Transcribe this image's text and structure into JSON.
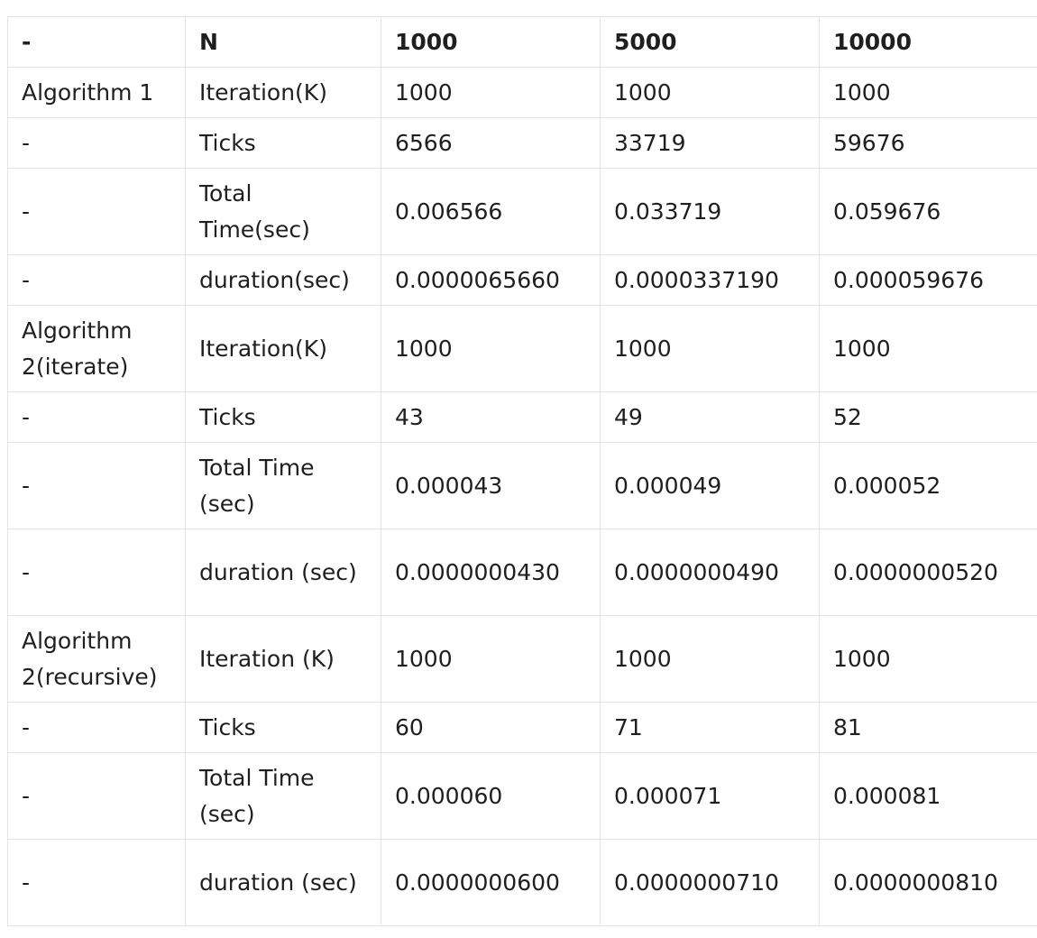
{
  "table": {
    "headers": [
      "-",
      "N",
      "1000",
      "5000",
      "10000"
    ],
    "rows": [
      [
        "Algorithm 1",
        "Iteration(K)",
        "1000",
        "1000",
        "1000"
      ],
      [
        "-",
        "Ticks",
        "6566",
        "33719",
        "59676"
      ],
      [
        "-",
        "Total Time(sec)",
        "0.006566",
        "0.033719",
        "0.059676"
      ],
      [
        "-",
        "duration(sec)",
        "0.0000065660",
        "0.0000337190",
        "0.000059676"
      ],
      [
        "Algorithm 2(iterate)",
        "Iteration(K)",
        "1000",
        "1000",
        "1000"
      ],
      [
        "-",
        "Ticks",
        "43",
        "49",
        "52"
      ],
      [
        "-",
        "Total Time (sec)",
        "0.000043",
        "0.000049",
        "0.000052"
      ],
      [
        "-",
        "duration (sec)",
        "0.0000000430",
        "0.0000000490",
        "0.0000000520"
      ],
      [
        "Algorithm 2(recursive)",
        "Iteration (K)",
        "1000",
        "1000",
        "1000"
      ],
      [
        "-",
        "Ticks",
        "60",
        "71",
        "81"
      ],
      [
        "-",
        "Total Time (sec)",
        "0.000060",
        "0.000071",
        "0.000081"
      ],
      [
        "-",
        "duration (sec)",
        "0.0000000600",
        "0.0000000710",
        "0.0000000810"
      ]
    ]
  }
}
